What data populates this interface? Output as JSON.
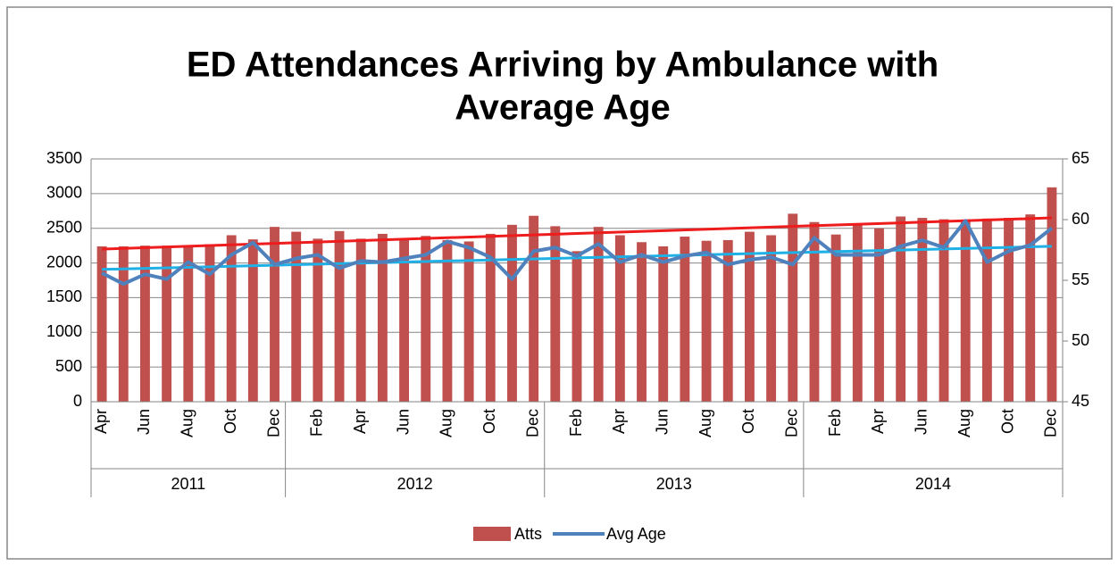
{
  "chart_data": {
    "type": "bar_line",
    "title": [
      "ED Attendances Arriving by Ambulance with",
      "Average Age"
    ],
    "categories": [
      "Apr",
      null,
      "Jun",
      null,
      "Aug",
      null,
      "Oct",
      null,
      "Dec",
      null,
      "Feb",
      null,
      "Apr",
      null,
      "Jun",
      null,
      "Aug",
      null,
      "Oct",
      null,
      "Dec",
      null,
      "Feb",
      null,
      "Apr",
      null,
      "Jun",
      null,
      "Aug",
      null,
      "Oct",
      null,
      "Dec",
      null,
      "Feb",
      null,
      "Apr",
      null,
      "Jun",
      null,
      "Aug",
      null,
      "Oct",
      null,
      "Dec"
    ],
    "x_groups": [
      "2011",
      "2012",
      "2013",
      "2014"
    ],
    "series": [
      {
        "name": "Atts",
        "type": "bar",
        "color": "#c0504d",
        "values": [
          2240,
          2240,
          2250,
          2250,
          2240,
          2270,
          2400,
          2340,
          2520,
          2450,
          2350,
          2460,
          2350,
          2420,
          2340,
          2390,
          2330,
          2310,
          2420,
          2550,
          2680,
          2530,
          2170,
          2520,
          2400,
          2300,
          2240,
          2380,
          2320,
          2330,
          2450,
          2400,
          2710,
          2590,
          2410,
          2570,
          2500,
          2670,
          2650,
          2630,
          2600,
          2640,
          2650,
          2700,
          3090
        ]
      },
      {
        "name": "Avg Age",
        "type": "line",
        "axis": "y2",
        "color": "#4f81bd",
        "values": [
          55.6,
          54.7,
          55.5,
          55.1,
          56.5,
          55.5,
          57.1,
          58.1,
          56.3,
          56.8,
          57.1,
          56.0,
          56.6,
          56.5,
          56.8,
          57.1,
          58.2,
          57.7,
          56.9,
          55.1,
          57.4,
          57.7,
          57.0,
          58.0,
          56.5,
          57.1,
          56.5,
          57.0,
          57.3,
          56.3,
          56.7,
          56.9,
          56.3,
          58.5,
          57.1,
          57.1,
          57.1,
          57.8,
          58.3,
          57.7,
          59.9,
          56.5,
          57.4,
          57.9,
          59.3
        ]
      }
    ],
    "trendlines": [
      {
        "color": "#ee1c1c",
        "values": [
          2200,
          2650
        ]
      },
      {
        "color": "#1fb0e6",
        "axis": "y2",
        "values": [
          55.9,
          57.8
        ]
      }
    ],
    "ylim": [
      0,
      3500
    ],
    "yticks": [
      0,
      500,
      1000,
      1500,
      2000,
      2500,
      3000,
      3500
    ],
    "y2lim": [
      45,
      65
    ],
    "y2ticks": [
      45,
      50,
      55,
      60,
      65
    ],
    "grid": true
  }
}
